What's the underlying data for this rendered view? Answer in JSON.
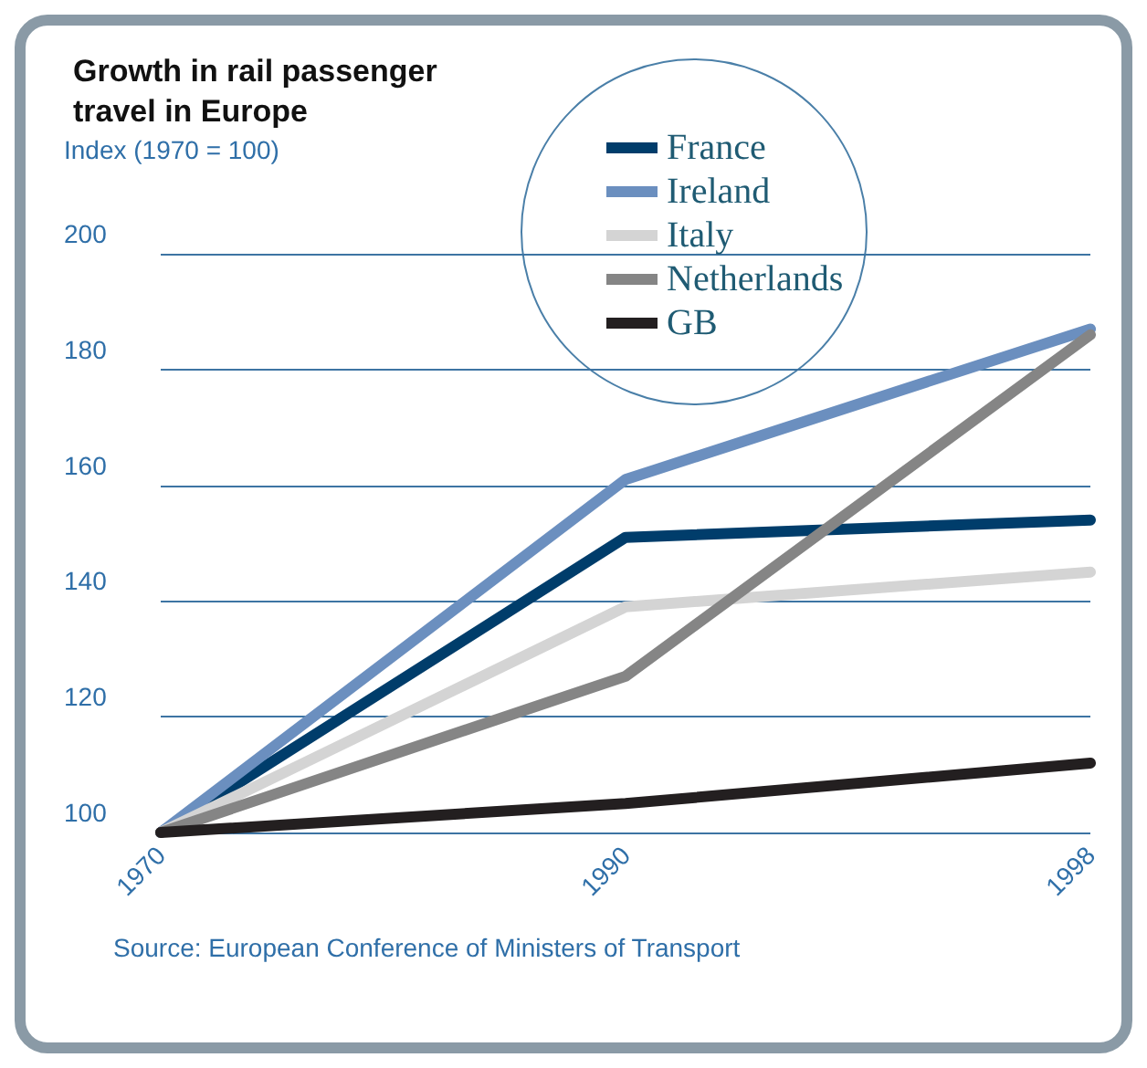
{
  "chart_data": {
    "type": "line",
    "title": "Growth in rail passenger travel in Europe",
    "ylabel": "Index (1970 = 100)",
    "categories": [
      "1970",
      "1990",
      "1998"
    ],
    "series": [
      {
        "name": "France",
        "color": "#003d6b",
        "values": [
          100,
          151,
          154
        ]
      },
      {
        "name": "Ireland",
        "color": "#6b8fbf",
        "values": [
          100,
          161,
          187
        ]
      },
      {
        "name": "Italy",
        "color": "#d4d4d4",
        "values": [
          100,
          139,
          145
        ]
      },
      {
        "name": "Netherlands",
        "color": "#858585",
        "values": [
          100,
          127,
          186
        ]
      },
      {
        "name": "GB",
        "color": "#231f20",
        "values": [
          100,
          105,
          112
        ]
      }
    ],
    "ylim": [
      100,
      200
    ],
    "yticks": [
      100,
      120,
      140,
      160,
      180,
      200
    ],
    "grid": "y",
    "legend": "top right",
    "marker": "none",
    "line_style": "solid",
    "annotations": [
      "Source: European Conference of Ministers of Transport"
    ]
  }
}
